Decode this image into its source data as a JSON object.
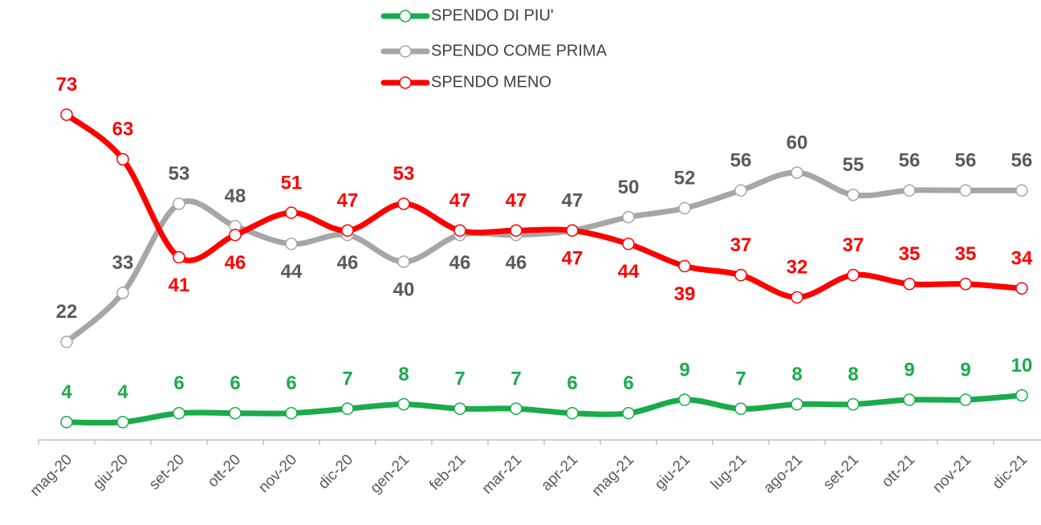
{
  "chart_data": {
    "type": "line",
    "categories": [
      "mag-20",
      "giu-20",
      "set-20",
      "ott-20",
      "nov-20",
      "dic-20",
      "gen-21",
      "feb-21",
      "mar-21",
      "apr-21",
      "mag-21",
      "giu-21",
      "lug-21",
      "ago-21",
      "set-21",
      "ott-21",
      "nov-21",
      "dic-21"
    ],
    "series": [
      {
        "name": "SPENDO DI PIU'",
        "color": "#1aab4b",
        "values": [
          4,
          4,
          6,
          6,
          6,
          7,
          8,
          7,
          7,
          6,
          6,
          9,
          7,
          8,
          8,
          9,
          9,
          10
        ]
      },
      {
        "name": "SPENDO COME PRIMA",
        "color": "#a6a6a6",
        "values": [
          22,
          33,
          53,
          48,
          44,
          46,
          40,
          46,
          46,
          47,
          50,
          52,
          56,
          60,
          55,
          56,
          56,
          56
        ]
      },
      {
        "name": "SPENDO MENO",
        "color": "#ff0000",
        "values": [
          73,
          63,
          41,
          46,
          51,
          47,
          53,
          47,
          47,
          47,
          44,
          39,
          37,
          32,
          37,
          35,
          35,
          34
        ]
      }
    ],
    "ylim": [
      0,
      80
    ]
  }
}
